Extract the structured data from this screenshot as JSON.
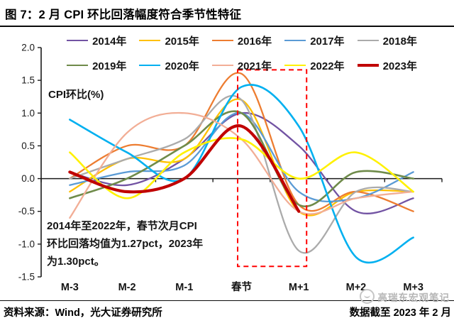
{
  "header": {
    "title": "图 7：2 月 CPI 环比回落幅度符合季节性特征"
  },
  "footer": {
    "source": "资料来源：Wind，光大证券研究所",
    "data_cutoff": "数据截至 2023 年 2 月",
    "watermark": "高瑞东宏观笔记"
  },
  "chart_data": {
    "type": "line",
    "smooth": true,
    "grid": false,
    "legend_position": "top",
    "y_axis_title": "CPI环比(%)",
    "categories": [
      "M-3",
      "M-2",
      "M-1",
      "春节",
      "M+1",
      "M+2",
      "M+3"
    ],
    "y_ticks": [
      "2.0",
      "1.5",
      "1.0",
      "0.5",
      "0.0",
      "-0.5",
      "-1.0",
      "-1.5"
    ],
    "ylim": [
      -1.5,
      2.0
    ],
    "series": [
      {
        "name": "2014年",
        "color": "#7253A3",
        "width": 2.3,
        "values": [
          0.1,
          -0.1,
          0.3,
          1.0,
          0.5,
          -0.5,
          -0.3
        ]
      },
      {
        "name": "2015年",
        "color": "#FFC000",
        "width": 2.3,
        "values": [
          -0.2,
          0.3,
          0.3,
          1.2,
          -0.5,
          -0.2,
          -0.2
        ]
      },
      {
        "name": "2016年",
        "color": "#ED7D31",
        "width": 2.3,
        "values": [
          0.0,
          0.5,
          0.5,
          1.6,
          -0.4,
          -0.2,
          -0.5
        ]
      },
      {
        "name": "2017年",
        "color": "#5B9BD5",
        "width": 2.3,
        "values": [
          -0.1,
          0.1,
          0.2,
          1.0,
          -0.2,
          -0.3,
          0.1
        ]
      },
      {
        "name": "2018年",
        "color": "#ABABAB",
        "width": 2.3,
        "values": [
          0.0,
          0.3,
          0.6,
          1.2,
          -1.1,
          -0.2,
          -0.2
        ]
      },
      {
        "name": "2019年",
        "color": "#6F8B4A",
        "width": 2.6,
        "values": [
          -0.3,
          0.0,
          0.5,
          1.0,
          -0.4,
          0.1,
          0.0
        ]
      },
      {
        "name": "2020年",
        "color": "#00B0F0",
        "width": 2.6,
        "values": [
          0.9,
          0.4,
          0.0,
          1.4,
          0.8,
          -1.2,
          -0.9
        ]
      },
      {
        "name": "2021年",
        "color": "#F2AE96",
        "width": 2.3,
        "values": [
          -0.6,
          0.7,
          1.0,
          0.6,
          -0.5,
          -0.3,
          -0.2
        ]
      },
      {
        "name": "2022年",
        "color": "#FFF100",
        "width": 2.6,
        "values": [
          0.4,
          -0.3,
          0.4,
          0.6,
          0.0,
          0.4,
          -0.2
        ]
      },
      {
        "name": "2023年",
        "color": "#C00000",
        "width": 4.2,
        "values": [
          0.1,
          -0.2,
          0.0,
          0.8,
          -0.5,
          null,
          null
        ]
      }
    ],
    "annotation": {
      "lines": [
        "2014年至2022年，春节次月CPI",
        "环比回落均值为1.27pct，2023年",
        "为1.30pct。"
      ]
    },
    "highlight_box": {
      "from_category": "春节",
      "to_category": "M+1",
      "y_from": -1.34,
      "y_to": 1.66,
      "color": "#FF0000"
    }
  }
}
